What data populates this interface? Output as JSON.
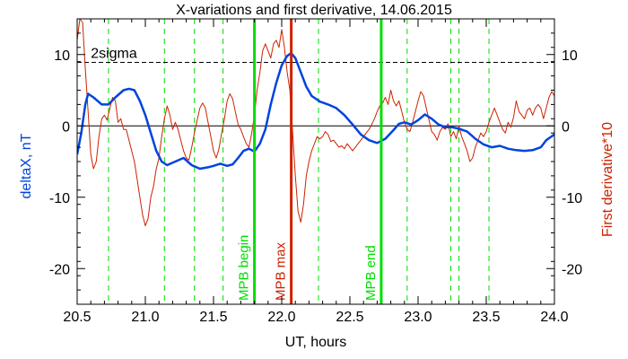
{
  "chart_data": {
    "type": "line",
    "title": "X-variations and first derivative, 14.06.2015",
    "xlabel": "UT, hours",
    "ylabel_left": "deltaX, nT",
    "ylabel_right": "First derivative*10",
    "xlim": [
      20.5,
      24.0
    ],
    "ylim": [
      -25,
      15
    ],
    "x_ticks": [
      20.5,
      21.0,
      21.5,
      22.0,
      22.5,
      23.0,
      23.5,
      24.0
    ],
    "x_tick_labels": [
      "20.5",
      "21.0",
      "21.5",
      "22.0",
      "22.5",
      "23.0",
      "23.5",
      "24.0"
    ],
    "y_ticks": [
      -20,
      -10,
      0,
      10
    ],
    "y_tick_labels": [
      "-20",
      "-10",
      "0",
      "10"
    ],
    "threshold": {
      "label": "2sigma",
      "y": 8.9
    },
    "zero_line": 0,
    "colors": {
      "deltaX": "#0044dd",
      "derivative": "#cc2200",
      "markers": "#00dd00",
      "max_marker": "#cc2200",
      "axes": "#000000"
    },
    "vertical_markers": [
      {
        "label": "MPB begin",
        "x": 21.8,
        "color": "#00dd00"
      },
      {
        "label": "MPB max",
        "x": 22.07,
        "color": "#cc2200"
      },
      {
        "label": "MPB end",
        "x": 22.73,
        "color": "#00dd00"
      }
    ],
    "dashed_verticals": [
      20.73,
      21.14,
      21.36,
      21.57,
      22.27,
      22.92,
      23.24,
      23.3,
      23.52
    ],
    "series": [
      {
        "name": "deltaX",
        "color": "#0044dd",
        "points": [
          [
            20.5,
            -4.0
          ],
          [
            20.53,
            -1.0
          ],
          [
            20.56,
            3.0
          ],
          [
            20.58,
            4.5
          ],
          [
            20.62,
            4.0
          ],
          [
            20.68,
            3.0
          ],
          [
            20.73,
            3.0
          ],
          [
            20.78,
            4.0
          ],
          [
            20.84,
            5.0
          ],
          [
            20.88,
            5.2
          ],
          [
            20.92,
            5.0
          ],
          [
            20.96,
            3.5
          ],
          [
            21.0,
            1.5
          ],
          [
            21.04,
            -1.0
          ],
          [
            21.08,
            -3.5
          ],
          [
            21.12,
            -5.0
          ],
          [
            21.16,
            -5.5
          ],
          [
            21.22,
            -5.0
          ],
          [
            21.28,
            -4.5
          ],
          [
            21.34,
            -5.5
          ],
          [
            21.4,
            -6.0
          ],
          [
            21.46,
            -5.8
          ],
          [
            21.5,
            -5.6
          ],
          [
            21.55,
            -5.3
          ],
          [
            21.6,
            -5.6
          ],
          [
            21.64,
            -5.4
          ],
          [
            21.68,
            -4.5
          ],
          [
            21.72,
            -3.5
          ],
          [
            21.76,
            -3.2
          ],
          [
            21.8,
            -3.6
          ],
          [
            21.84,
            -2.5
          ],
          [
            21.88,
            -0.5
          ],
          [
            21.92,
            3.0
          ],
          [
            21.96,
            6.0
          ],
          [
            22.0,
            8.5
          ],
          [
            22.04,
            9.8
          ],
          [
            22.07,
            10.2
          ],
          [
            22.1,
            9.5
          ],
          [
            22.14,
            7.5
          ],
          [
            22.18,
            5.5
          ],
          [
            22.22,
            4.2
          ],
          [
            22.28,
            3.4
          ],
          [
            22.34,
            3.0
          ],
          [
            22.4,
            2.5
          ],
          [
            22.46,
            1.5
          ],
          [
            22.52,
            0.2
          ],
          [
            22.58,
            -1.2
          ],
          [
            22.64,
            -2.0
          ],
          [
            22.7,
            -2.4
          ],
          [
            22.76,
            -1.8
          ],
          [
            22.82,
            -0.6
          ],
          [
            22.86,
            0.3
          ],
          [
            22.9,
            0.5
          ],
          [
            22.95,
            0.2
          ],
          [
            23.0,
            0.8
          ],
          [
            23.05,
            1.6
          ],
          [
            23.1,
            1.0
          ],
          [
            23.15,
            0.2
          ],
          [
            23.2,
            -0.2
          ],
          [
            23.25,
            -0.2
          ],
          [
            23.3,
            -0.4
          ],
          [
            23.36,
            -0.8
          ],
          [
            23.42,
            -1.8
          ],
          [
            23.48,
            -2.6
          ],
          [
            23.54,
            -3.0
          ],
          [
            23.6,
            -2.8
          ],
          [
            23.66,
            -3.2
          ],
          [
            23.72,
            -3.4
          ],
          [
            23.78,
            -3.5
          ],
          [
            23.84,
            -3.4
          ],
          [
            23.9,
            -3.0
          ],
          [
            23.94,
            -2.0
          ],
          [
            23.97,
            -1.6
          ],
          [
            24.0,
            -1.2
          ]
        ]
      },
      {
        "name": "First derivative*10",
        "color": "#cc2200",
        "points": [
          [
            20.5,
            12.0
          ],
          [
            20.52,
            15.0
          ],
          [
            20.54,
            14.5
          ],
          [
            20.56,
            8.0
          ],
          [
            20.58,
            2.0
          ],
          [
            20.6,
            -4.0
          ],
          [
            20.62,
            -6.0
          ],
          [
            20.64,
            -5.0
          ],
          [
            20.66,
            -1.5
          ],
          [
            20.68,
            1.0
          ],
          [
            20.7,
            1.5
          ],
          [
            20.72,
            0.8
          ],
          [
            20.74,
            2.5
          ],
          [
            20.76,
            4.0
          ],
          [
            20.78,
            3.5
          ],
          [
            20.8,
            0.5
          ],
          [
            20.82,
            1.0
          ],
          [
            20.84,
            -0.5
          ],
          [
            20.86,
            -0.5
          ],
          [
            20.88,
            -2.0
          ],
          [
            20.9,
            -3.5
          ],
          [
            20.92,
            -5.0
          ],
          [
            20.94,
            -7.5
          ],
          [
            20.96,
            -10.0
          ],
          [
            20.98,
            -12.5
          ],
          [
            21.0,
            -14.0
          ],
          [
            21.02,
            -13.0
          ],
          [
            21.04,
            -10.0
          ],
          [
            21.06,
            -8.5
          ],
          [
            21.08,
            -6.0
          ],
          [
            21.1,
            -4.5
          ],
          [
            21.12,
            -1.5
          ],
          [
            21.14,
            1.0
          ],
          [
            21.16,
            2.8
          ],
          [
            21.18,
            1.5
          ],
          [
            21.2,
            -0.5
          ],
          [
            21.22,
            0.5
          ],
          [
            21.24,
            -0.5
          ],
          [
            21.26,
            -2.0
          ],
          [
            21.28,
            -3.5
          ],
          [
            21.3,
            -4.5
          ],
          [
            21.32,
            -4.8
          ],
          [
            21.34,
            -3.0
          ],
          [
            21.36,
            -1.0
          ],
          [
            21.38,
            0.8
          ],
          [
            21.4,
            2.5
          ],
          [
            21.42,
            3.2
          ],
          [
            21.44,
            2.5
          ],
          [
            21.46,
            0.5
          ],
          [
            21.48,
            -1.5
          ],
          [
            21.5,
            -3.5
          ],
          [
            21.52,
            -4.5
          ],
          [
            21.54,
            -3.2
          ],
          [
            21.56,
            -1.0
          ],
          [
            21.58,
            1.0
          ],
          [
            21.6,
            3.5
          ],
          [
            21.62,
            4.5
          ],
          [
            21.64,
            3.8
          ],
          [
            21.66,
            2.0
          ],
          [
            21.68,
            0.2
          ],
          [
            21.7,
            -0.5
          ],
          [
            21.72,
            -1.5
          ],
          [
            21.74,
            -2.5
          ],
          [
            21.76,
            -3.0
          ],
          [
            21.78,
            -1.0
          ],
          [
            21.8,
            1.5
          ],
          [
            21.82,
            5.0
          ],
          [
            21.84,
            7.5
          ],
          [
            21.86,
            10.5
          ],
          [
            21.88,
            11.5
          ],
          [
            21.9,
            10.5
          ],
          [
            21.92,
            9.5
          ],
          [
            21.94,
            11.5
          ],
          [
            21.96,
            12.0
          ],
          [
            21.98,
            11.0
          ],
          [
            22.0,
            13.5
          ],
          [
            22.02,
            11.0
          ],
          [
            22.04,
            7.5
          ],
          [
            22.06,
            5.0
          ],
          [
            22.08,
            -1.0
          ],
          [
            22.1,
            -7.0
          ],
          [
            22.12,
            -12.0
          ],
          [
            22.14,
            -13.5
          ],
          [
            22.16,
            -11.0
          ],
          [
            22.18,
            -7.0
          ],
          [
            22.2,
            -5.0
          ],
          [
            22.22,
            -3.5
          ],
          [
            22.24,
            -2.5
          ],
          [
            22.26,
            -1.5
          ],
          [
            22.28,
            -1.8
          ],
          [
            22.3,
            -1.5
          ],
          [
            22.32,
            -0.8
          ],
          [
            22.34,
            -1.2
          ],
          [
            22.36,
            -2.2
          ],
          [
            22.38,
            -2.0
          ],
          [
            22.4,
            -2.5
          ],
          [
            22.42,
            -3.0
          ],
          [
            22.44,
            -2.8
          ],
          [
            22.46,
            -3.2
          ],
          [
            22.48,
            -2.5
          ],
          [
            22.5,
            -3.0
          ],
          [
            22.52,
            -3.5
          ],
          [
            22.54,
            -3.0
          ],
          [
            22.56,
            -2.5
          ],
          [
            22.58,
            -2.0
          ],
          [
            22.6,
            -1.5
          ],
          [
            22.62,
            -1.0
          ],
          [
            22.64,
            -0.5
          ],
          [
            22.66,
            0.2
          ],
          [
            22.68,
            1.0
          ],
          [
            22.7,
            2.0
          ],
          [
            22.72,
            2.8
          ],
          [
            22.74,
            3.2
          ],
          [
            22.76,
            4.0
          ],
          [
            22.78,
            3.0
          ],
          [
            22.8,
            5.0
          ],
          [
            22.82,
            3.5
          ],
          [
            22.84,
            2.8
          ],
          [
            22.86,
            3.5
          ],
          [
            22.88,
            2.0
          ],
          [
            22.9,
            0.5
          ],
          [
            22.92,
            -0.5
          ],
          [
            22.94,
            -0.8
          ],
          [
            22.96,
            0.5
          ],
          [
            22.98,
            2.0
          ],
          [
            23.0,
            3.5
          ],
          [
            23.02,
            4.8
          ],
          [
            23.04,
            4.2
          ],
          [
            23.06,
            2.5
          ],
          [
            23.08,
            0.8
          ],
          [
            23.1,
            -0.8
          ],
          [
            23.12,
            -1.2
          ],
          [
            23.14,
            -2.0
          ],
          [
            23.16,
            -0.8
          ],
          [
            23.18,
            -0.2
          ],
          [
            23.2,
            -0.5
          ],
          [
            23.22,
            0.3
          ],
          [
            23.24,
            -1.5
          ],
          [
            23.26,
            -0.8
          ],
          [
            23.28,
            -1.8
          ],
          [
            23.3,
            0.0
          ],
          [
            23.32,
            -1.5
          ],
          [
            23.34,
            -2.5
          ],
          [
            23.36,
            -3.5
          ],
          [
            23.38,
            -5.0
          ],
          [
            23.4,
            -4.5
          ],
          [
            23.42,
            -3.0
          ],
          [
            23.44,
            -2.0
          ],
          [
            23.46,
            -1.0
          ],
          [
            23.48,
            -1.5
          ],
          [
            23.5,
            -0.8
          ],
          [
            23.52,
            0.5
          ],
          [
            23.54,
            1.5
          ],
          [
            23.56,
            2.5
          ],
          [
            23.58,
            1.5
          ],
          [
            23.6,
            0.5
          ],
          [
            23.62,
            -0.5
          ],
          [
            23.64,
            -1.0
          ],
          [
            23.66,
            0.5
          ],
          [
            23.68,
            -0.2
          ],
          [
            23.7,
            1.2
          ],
          [
            23.72,
            3.5
          ],
          [
            23.74,
            2.0
          ],
          [
            23.76,
            1.5
          ],
          [
            23.78,
            1.0
          ],
          [
            23.8,
            2.2
          ],
          [
            23.82,
            2.5
          ],
          [
            23.84,
            1.5
          ],
          [
            23.86,
            2.5
          ],
          [
            23.88,
            3.0
          ],
          [
            23.9,
            2.5
          ],
          [
            23.92,
            1.0
          ],
          [
            23.94,
            2.5
          ],
          [
            23.96,
            4.0
          ],
          [
            23.98,
            4.8
          ],
          [
            24.0,
            4.2
          ]
        ]
      }
    ]
  }
}
